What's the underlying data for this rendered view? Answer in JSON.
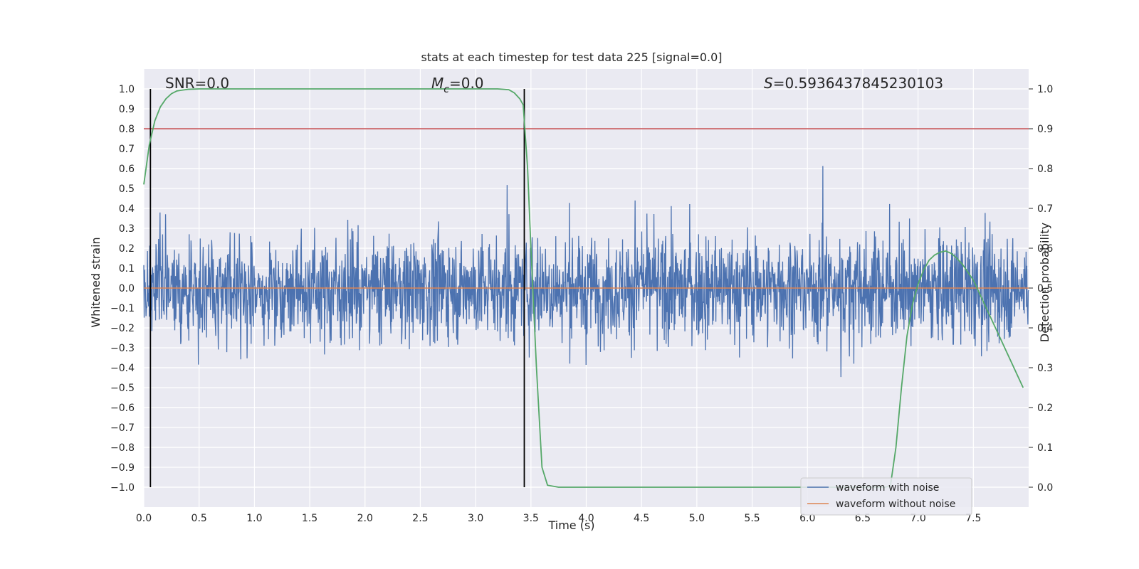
{
  "chart_data": {
    "type": "line",
    "title": "stats at each timestep for test data 225 [signal=0.0]",
    "xlabel": "Time (s)",
    "ylabel": "Whitened strain",
    "ylabel_right": "Detection probability",
    "xlim": [
      0.0,
      8.0
    ],
    "ylim": [
      -1.1,
      1.1
    ],
    "ylim_right": [
      -0.05,
      1.05
    ],
    "x_ticks": [
      "0.0",
      "0.5",
      "1.0",
      "1.5",
      "2.0",
      "2.5",
      "3.0",
      "3.5",
      "4.0",
      "4.5",
      "5.0",
      "5.5",
      "6.0",
      "6.5",
      "7.0",
      "7.5"
    ],
    "x_tick_values": [
      0.0,
      0.5,
      1.0,
      1.5,
      2.0,
      2.5,
      3.0,
      3.5,
      4.0,
      4.5,
      5.0,
      5.5,
      6.0,
      6.5,
      7.0,
      7.5
    ],
    "y_ticks": [
      "1.0",
      "0.9",
      "0.8",
      "0.7",
      "0.6",
      "0.5",
      "0.4",
      "0.3",
      "0.2",
      "0.1",
      "0.0",
      "−0.1",
      "−0.2",
      "−0.3",
      "−0.4",
      "−0.5",
      "−0.6",
      "−0.7",
      "−0.8",
      "−0.9",
      "−1.0"
    ],
    "y_tick_values": [
      1.0,
      0.9,
      0.8,
      0.7,
      0.6,
      0.5,
      0.4,
      0.3,
      0.2,
      0.1,
      0.0,
      -0.1,
      -0.2,
      -0.3,
      -0.4,
      -0.5,
      -0.6,
      -0.7,
      -0.8,
      -0.9,
      -1.0
    ],
    "y_ticks_right": [
      "1.0",
      "0.9",
      "0.8",
      "0.7",
      "0.6",
      "0.5",
      "0.4",
      "0.3",
      "0.2",
      "0.1",
      "0.0"
    ],
    "y_tick_values_right": [
      1.0,
      0.9,
      0.8,
      0.7,
      0.6,
      0.5,
      0.4,
      0.3,
      0.2,
      0.1,
      0.0
    ],
    "annotations": {
      "snr": "SNR=0.0",
      "mc_symbol": "M",
      "mc_sub": "c",
      "mc_value": "=0.0",
      "s_symbol": "S",
      "s_value": "=0.5936437845230103"
    },
    "legend": {
      "placement": "lower-right",
      "entries": [
        "waveform with noise",
        "waveform without noise"
      ]
    },
    "colors": {
      "noise": "#4c72b0",
      "clean": "#dd8452",
      "probability": "#55a868",
      "threshold": "#c44e52",
      "markers": "#000000",
      "background": "#eaeaf2",
      "grid": "#ffffff"
    },
    "grid": true,
    "series": [
      {
        "name": "waveform with noise",
        "axis": "left",
        "description_envelope": "dense noise between about -1.0 and 1.0"
      },
      {
        "name": "waveform without noise",
        "axis": "left",
        "x": [
          0.0,
          8.0
        ],
        "y": [
          0.0,
          0.0
        ]
      },
      {
        "name": "",
        "axis": "right",
        "x": [
          0.0,
          0.05,
          0.1,
          0.15,
          0.2,
          0.25,
          0.3,
          0.4,
          0.5,
          0.7,
          1.0,
          2.0,
          3.0,
          3.2,
          3.3,
          3.35,
          3.4,
          3.43,
          3.47,
          3.5,
          3.55,
          3.6,
          3.65,
          3.75,
          4.0,
          5.0,
          6.0,
          6.5,
          6.7,
          6.75,
          6.8,
          6.85,
          6.9,
          6.95,
          7.0,
          7.05,
          7.1,
          7.15,
          7.2,
          7.25,
          7.3,
          7.35,
          7.4,
          7.45,
          7.5,
          7.55,
          7.6,
          7.65,
          7.7,
          7.75,
          7.8,
          7.85,
          7.9,
          7.95
        ],
        "y": [
          0.76,
          0.86,
          0.92,
          0.955,
          0.975,
          0.988,
          0.995,
          0.999,
          1.0,
          1.0,
          1.0,
          1.0,
          1.0,
          1.0,
          0.998,
          0.99,
          0.975,
          0.96,
          0.8,
          0.6,
          0.3,
          0.05,
          0.005,
          0.0,
          0.0,
          0.0,
          0.0,
          0.0,
          0.0,
          0.003,
          0.1,
          0.25,
          0.38,
          0.46,
          0.51,
          0.545,
          0.57,
          0.583,
          0.59,
          0.593,
          0.587,
          0.575,
          0.56,
          0.54,
          0.52,
          0.49,
          0.46,
          0.43,
          0.4,
          0.37,
          0.34,
          0.31,
          0.28,
          0.25
        ]
      }
    ],
    "threshold_right": 0.9,
    "vertical_markers_x": [
      0.06,
      3.44
    ]
  }
}
